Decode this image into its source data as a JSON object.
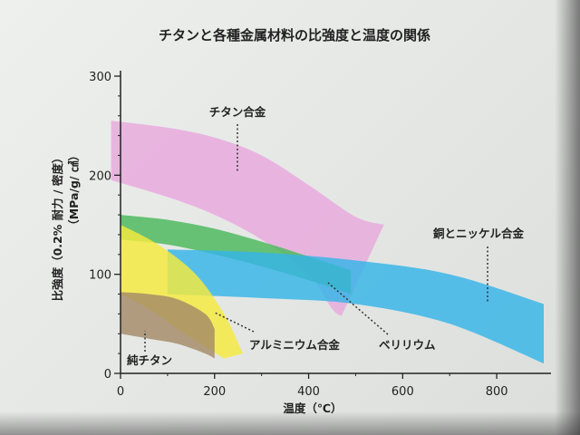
{
  "chart_data": {
    "type": "area",
    "title": "チタンと各種金属材料の比強度と温度の関係",
    "xlabel": "温度（℃）",
    "ylabel": "比強度（0.2% 耐力 / 密度）",
    "ylabel_unit": "（MPa/g/ ㎤）",
    "xlim": [
      0,
      900
    ],
    "ylim": [
      0,
      300
    ],
    "x_ticks": [
      "0",
      "200",
      "400",
      "600",
      "800"
    ],
    "y_ticks": [
      "0",
      "100",
      "200",
      "300"
    ],
    "grid": false,
    "series": [
      {
        "name": "チタン合金",
        "color": "#e8a8dd",
        "upper": [
          [
            -20,
            255
          ],
          [
            100,
            248
          ],
          [
            200,
            238
          ],
          [
            300,
            220
          ],
          [
            400,
            190
          ],
          [
            500,
            158
          ],
          [
            560,
            150
          ]
        ],
        "lower": [
          [
            -20,
            195
          ],
          [
            100,
            178
          ],
          [
            200,
            160
          ],
          [
            300,
            135
          ],
          [
            400,
            100
          ],
          [
            450,
            65
          ],
          [
            470,
            58
          ]
        ]
      },
      {
        "name": "ベリリウム",
        "color": "#49b85a",
        "upper": [
          [
            0,
            160
          ],
          [
            100,
            155
          ],
          [
            200,
            146
          ],
          [
            300,
            133
          ],
          [
            400,
            118
          ],
          [
            490,
            104
          ]
        ],
        "lower": [
          [
            0,
            135
          ],
          [
            100,
            130
          ],
          [
            200,
            120
          ],
          [
            300,
            108
          ],
          [
            400,
            94
          ],
          [
            490,
            80
          ]
        ]
      },
      {
        "name": "銅とニッケル合金",
        "color": "#35b5e8",
        "upper": [
          [
            100,
            125
          ],
          [
            300,
            122
          ],
          [
            500,
            114
          ],
          [
            700,
            100
          ],
          [
            900,
            70
          ]
        ],
        "lower": [
          [
            100,
            80
          ],
          [
            300,
            76
          ],
          [
            500,
            70
          ],
          [
            700,
            50
          ],
          [
            900,
            10
          ]
        ]
      },
      {
        "name": "アルミニウム合金",
        "color": "#f5ea3c",
        "upper": [
          [
            0,
            150
          ],
          [
            80,
            130
          ],
          [
            160,
            100
          ],
          [
            220,
            60
          ],
          [
            260,
            20
          ]
        ],
        "lower": [
          [
            0,
            80
          ],
          [
            60,
            65
          ],
          [
            120,
            45
          ],
          [
            170,
            30
          ],
          [
            220,
            15
          ]
        ]
      },
      {
        "name": "純チタン",
        "color": "#a48a68",
        "upper": [
          [
            0,
            82
          ],
          [
            60,
            80
          ],
          [
            120,
            75
          ],
          [
            180,
            60
          ],
          [
            200,
            45
          ]
        ],
        "lower": [
          [
            0,
            40
          ],
          [
            60,
            35
          ],
          [
            120,
            30
          ],
          [
            180,
            20
          ],
          [
            200,
            15
          ]
        ]
      }
    ]
  }
}
